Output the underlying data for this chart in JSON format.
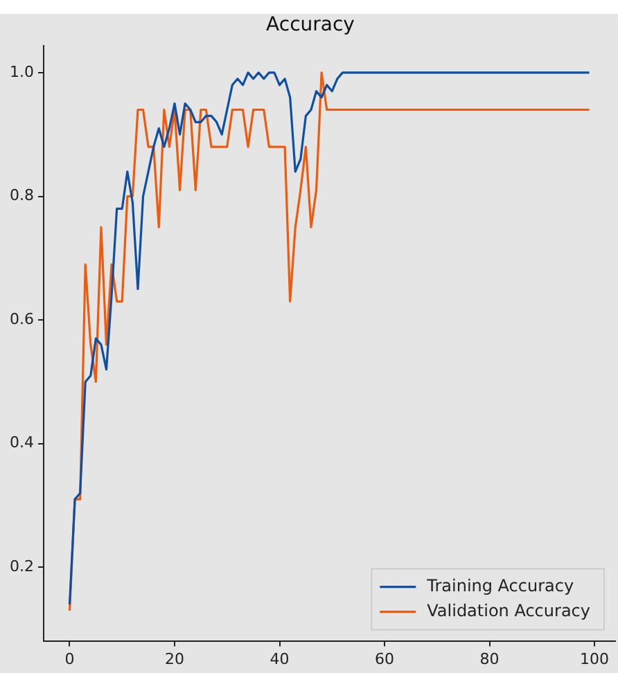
{
  "chart_data": {
    "type": "line",
    "title": "Accuracy",
    "x": [
      0,
      1,
      2,
      3,
      4,
      5,
      6,
      7,
      8,
      9,
      10,
      11,
      12,
      13,
      14,
      15,
      16,
      17,
      18,
      19,
      20,
      21,
      22,
      23,
      24,
      25,
      26,
      27,
      28,
      29,
      30,
      31,
      32,
      33,
      34,
      35,
      36,
      37,
      38,
      39,
      40,
      41,
      42,
      43,
      44,
      45,
      46,
      47,
      48,
      49,
      50,
      51,
      52,
      53,
      54,
      55,
      56,
      57,
      58,
      59,
      60,
      61,
      62,
      63,
      64,
      65,
      66,
      67,
      68,
      69,
      70,
      71,
      72,
      73,
      74,
      75,
      76,
      77,
      78,
      79,
      80,
      81,
      82,
      83,
      84,
      85,
      86,
      87,
      88,
      89,
      90,
      91,
      92,
      93,
      94,
      95,
      96,
      97,
      98,
      99
    ],
    "series": [
      {
        "name": "Training Accuracy",
        "color": "#0d4fa3",
        "values": [
          0.14,
          0.31,
          0.32,
          0.5,
          0.51,
          0.57,
          0.56,
          0.52,
          0.64,
          0.78,
          0.78,
          0.84,
          0.79,
          0.65,
          0.8,
          0.84,
          0.88,
          0.91,
          0.88,
          0.91,
          0.95,
          0.9,
          0.95,
          0.94,
          0.92,
          0.92,
          0.93,
          0.93,
          0.92,
          0.9,
          0.94,
          0.98,
          0.99,
          0.98,
          1.0,
          0.99,
          1.0,
          0.99,
          1.0,
          1.0,
          0.98,
          0.99,
          0.96,
          0.84,
          0.86,
          0.93,
          0.94,
          0.97,
          0.96,
          0.98,
          0.97,
          0.99,
          1.0,
          1.0,
          1.0,
          1.0,
          1.0,
          1.0,
          1.0,
          1.0,
          1.0,
          1.0,
          1.0,
          1.0,
          1.0,
          1.0,
          1.0,
          1.0,
          1.0,
          1.0,
          1.0,
          1.0,
          1.0,
          1.0,
          1.0,
          1.0,
          1.0,
          1.0,
          1.0,
          1.0,
          1.0,
          1.0,
          1.0,
          1.0,
          1.0,
          1.0,
          1.0,
          1.0,
          1.0,
          1.0,
          1.0,
          1.0,
          1.0,
          1.0,
          1.0,
          1.0,
          1.0,
          1.0,
          1.0,
          1.0
        ]
      },
      {
        "name": "Validation Accuracy",
        "color": "#ef5a0c",
        "values": [
          0.13,
          0.31,
          0.31,
          0.69,
          0.56,
          0.5,
          0.75,
          0.56,
          0.69,
          0.63,
          0.63,
          0.8,
          0.8,
          0.94,
          0.94,
          0.88,
          0.88,
          0.75,
          0.94,
          0.88,
          0.94,
          0.81,
          0.94,
          0.94,
          0.81,
          0.94,
          0.94,
          0.88,
          0.88,
          0.88,
          0.88,
          0.94,
          0.94,
          0.94,
          0.88,
          0.94,
          0.94,
          0.94,
          0.88,
          0.88,
          0.88,
          0.88,
          0.63,
          0.75,
          0.81,
          0.88,
          0.75,
          0.81,
          1.0,
          0.94,
          0.94,
          0.94,
          0.94,
          0.94,
          0.94,
          0.94,
          0.94,
          0.94,
          0.94,
          0.94,
          0.94,
          0.94,
          0.94,
          0.94,
          0.94,
          0.94,
          0.94,
          0.94,
          0.94,
          0.94,
          0.94,
          0.94,
          0.94,
          0.94,
          0.94,
          0.94,
          0.94,
          0.94,
          0.94,
          0.94,
          0.94,
          0.94,
          0.94,
          0.94,
          0.94,
          0.94,
          0.94,
          0.94,
          0.94,
          0.94,
          0.94,
          0.94,
          0.94,
          0.94,
          0.94,
          0.94,
          0.94,
          0.94,
          0.94,
          0.94
        ]
      }
    ],
    "xlim": [
      -4.95,
      103.95
    ],
    "xticks": [
      0,
      20,
      40,
      60,
      80,
      100
    ],
    "ylim": [
      0.081,
      1.044
    ],
    "yticks": [
      0.2,
      0.4,
      0.6,
      0.8,
      {
        "value": 1,
        "label": "1.0"
      }
    ],
    "grid": false,
    "legend": "bottom right",
    "marker": "none",
    "line_style": "solid"
  }
}
